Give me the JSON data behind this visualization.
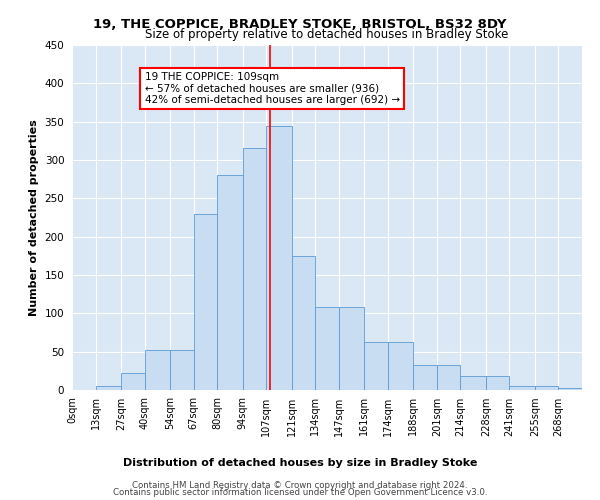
{
  "title1": "19, THE COPPICE, BRADLEY STOKE, BRISTOL, BS32 8DY",
  "title2": "Size of property relative to detached houses in Bradley Stoke",
  "xlabel": "Distribution of detached houses by size in Bradley Stoke",
  "ylabel": "Number of detached properties",
  "bar_labels": [
    "0sqm",
    "13sqm",
    "27sqm",
    "40sqm",
    "54sqm",
    "67sqm",
    "80sqm",
    "94sqm",
    "107sqm",
    "121sqm",
    "134sqm",
    "147sqm",
    "161sqm",
    "174sqm",
    "188sqm",
    "201sqm",
    "214sqm",
    "228sqm",
    "241sqm",
    "255sqm",
    "268sqm"
  ],
  "bar_values": [
    0,
    5,
    22,
    52,
    52,
    230,
    280,
    315,
    345,
    175,
    108,
    108,
    63,
    63,
    32,
    32,
    18,
    18,
    5,
    5,
    2
  ],
  "bar_color": "#c9ddf2",
  "bar_edge_color": "#5b9bd5",
  "bg_color": "#dae8f5",
  "property_line_x": 109,
  "annotation_title": "19 THE COPPICE: 109sqm",
  "annotation_line1": "← 57% of detached houses are smaller (936)",
  "annotation_line2": "42% of semi-detached houses are larger (692) →",
  "ylim": [
    0,
    450
  ],
  "yticks": [
    0,
    50,
    100,
    150,
    200,
    250,
    300,
    350,
    400,
    450
  ],
  "footer1": "Contains HM Land Registry data © Crown copyright and database right 2024.",
  "footer2": "Contains public sector information licensed under the Open Government Licence v3.0."
}
